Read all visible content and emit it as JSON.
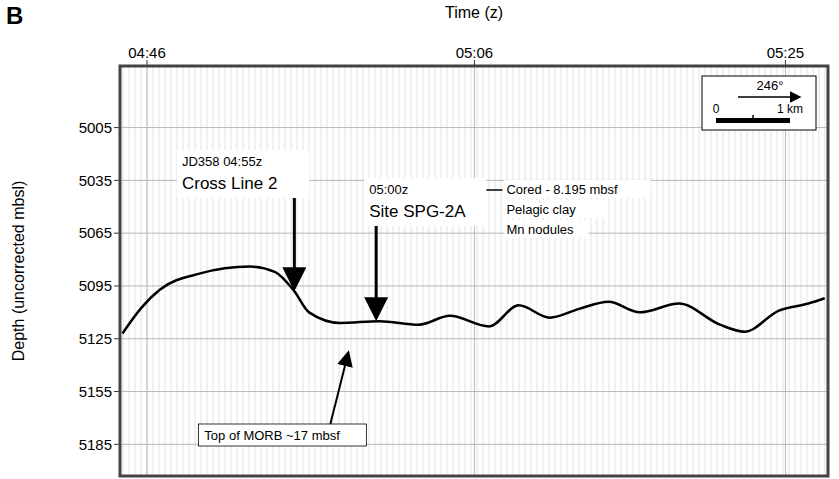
{
  "chart_data": {
    "type": "line",
    "panel_label": "B",
    "title": "Time (z)",
    "y_label": "Depth (uncorrected mbsl)",
    "x": [
      284.5,
      285.6,
      286.8,
      289.2,
      292.3,
      293.8,
      295.0,
      295.9,
      297.8,
      300.2,
      302.6,
      304.5,
      306.9,
      308.7,
      310.6,
      312.4,
      314.2,
      316.1,
      318.5,
      321.0,
      322.5,
      324.6,
      326.4,
      327.4
    ],
    "values": [
      5122,
      5108,
      5097,
      5088,
      5084,
      5087,
      5098,
      5110,
      5116,
      5115,
      5117,
      5112,
      5118,
      5106,
      5113,
      5108,
      5104,
      5110,
      5105,
      5117,
      5121,
      5109,
      5105,
      5102
    ],
    "color": "#000000",
    "xlim": [
      284.35,
      327.6
    ],
    "xticks": [
      {
        "value": 286,
        "label": "04:46"
      },
      {
        "value": 306,
        "label": "05:06"
      },
      {
        "value": 325,
        "label": "05:25"
      }
    ],
    "ylim": [
      4970,
      5203
    ],
    "yticks": [
      5005,
      5035,
      5065,
      5095,
      5125,
      5155,
      5185
    ],
    "grid": true,
    "annotations": [
      {
        "text": [
          "JD358 04:55z",
          "Cross Line 2"
        ],
        "x": 295,
        "y": 5098
      },
      {
        "text": [
          "05:00z",
          "Site SPG-2A"
        ],
        "details": [
          "Cored - 8.195 mbsf",
          "Pelagic clay",
          "Mn nodules"
        ],
        "x": 300,
        "y": 5115
      },
      {
        "text": [
          "Top of MORB ~17 mbsf"
        ],
        "x": 298.3,
        "y": 5131
      }
    ],
    "scale_bar": {
      "heading": "246°",
      "labels": [
        "0",
        "1 km"
      ]
    }
  }
}
